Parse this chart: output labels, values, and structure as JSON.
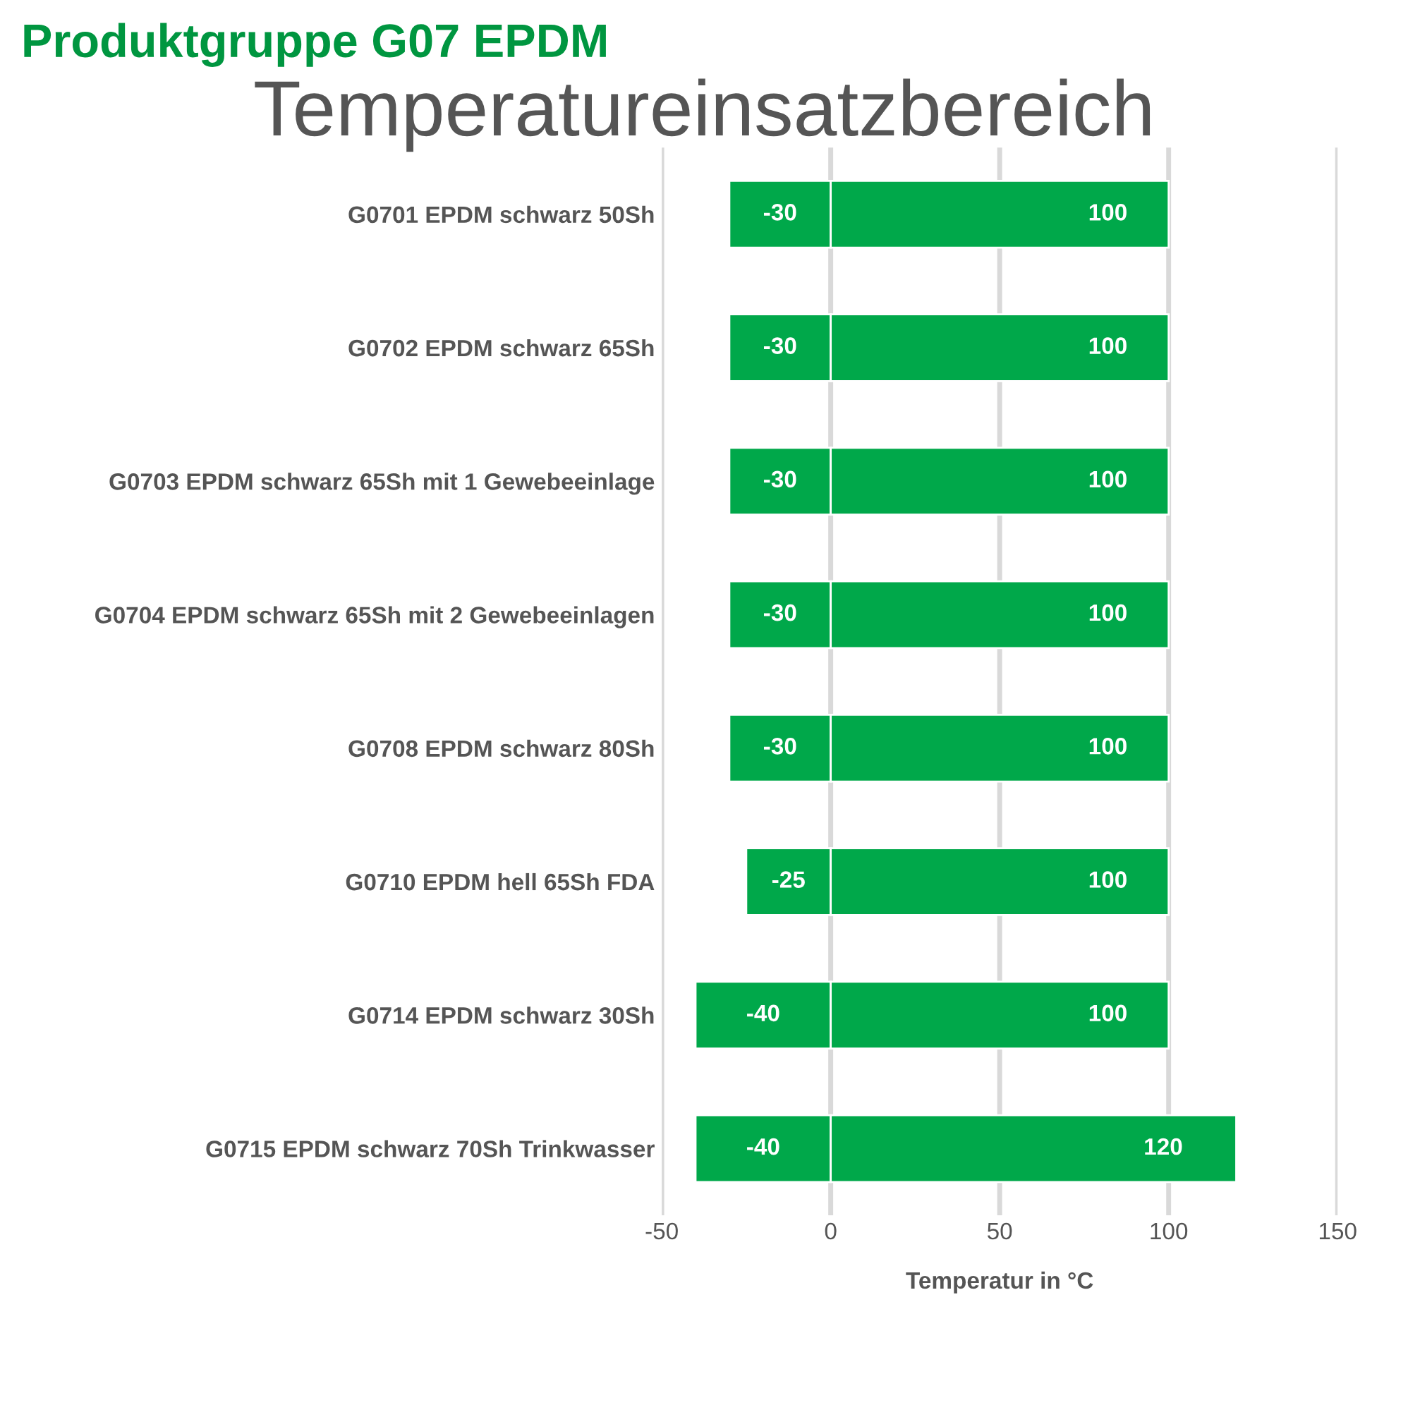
{
  "chart_data": {
    "type": "bar",
    "orientation": "horizontal",
    "stacked": true,
    "title": "Produktgruppe G07 EPDM",
    "subtitle": "Temperatureinsatzbereich",
    "xlabel": "Temperatur in °C",
    "categories": [
      "G0701 EPDM schwarz 50Sh",
      "G0702 EPDM schwarz 65Sh",
      "G0703 EPDM schwarz 65Sh mit 1 Gewebeeinlage",
      "G0704 EPDM schwarz 65Sh mit 2 Gewebeeinlagen",
      "G0708 EPDM schwarz 80Sh",
      "G0710 EPDM hell 65Sh FDA",
      "G0714 EPDM schwarz 30Sh",
      "G0715 EPDM schwarz 70Sh Trinkwasser"
    ],
    "series": [
      {
        "color": "#00a84a",
        "values": [
          -30,
          -30,
          -30,
          -30,
          -30,
          -25,
          -40,
          -40
        ]
      },
      {
        "color": "#00a84a",
        "values": [
          100,
          100,
          100,
          100,
          100,
          100,
          100,
          120
        ]
      }
    ],
    "xlim": [
      -50,
      150
    ],
    "xticks": [
      -50,
      0,
      50,
      100,
      150
    ],
    "grid": "x",
    "data_labels": true
  }
}
